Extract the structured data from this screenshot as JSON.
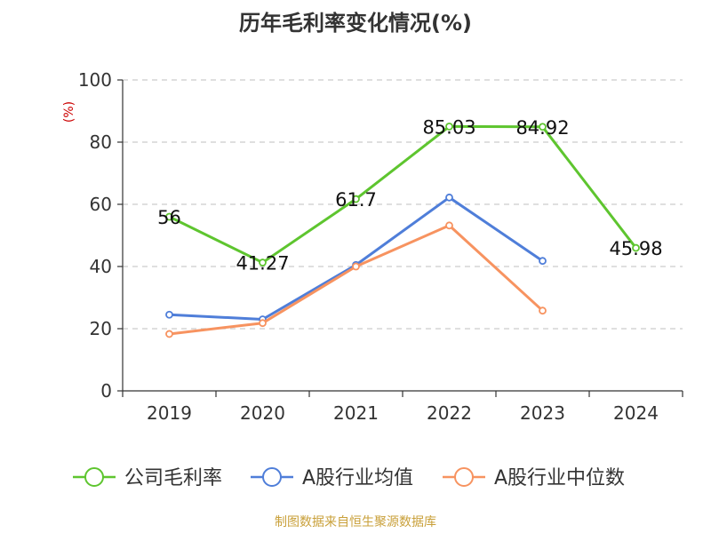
{
  "colors": {
    "company": "#5ec52f",
    "industry_avg": "#4f7ed9",
    "industry_median": "#f79360",
    "grid": "#cccccc",
    "axis": "#333333",
    "unit": "#cc0000",
    "source": "#c9a03a"
  },
  "chart_data": {
    "type": "line",
    "title": "历年毛利率变化情况(%)",
    "ylabel": "(%)",
    "ylim": [
      0,
      100
    ],
    "yticks": [
      0,
      20,
      40,
      60,
      80,
      100
    ],
    "categories": [
      "2019",
      "2020",
      "2021",
      "2022",
      "2023",
      "2024"
    ],
    "grid": true,
    "legend_position": "bottom",
    "series": [
      {
        "name": "公司毛利率",
        "values": [
          56,
          41.27,
          61.7,
          85.03,
          84.92,
          45.98
        ],
        "labels": [
          "56",
          "41.27",
          "61.7",
          "85.03",
          "84.92",
          "45.98"
        ]
      },
      {
        "name": "A股行业均值",
        "values": [
          24.5,
          23,
          40.5,
          62.2,
          41.8,
          null
        ]
      },
      {
        "name": "A股行业中位数",
        "values": [
          18.3,
          21.8,
          40,
          53.2,
          25.8,
          null
        ]
      }
    ]
  },
  "source_text": "制图数据来自恒生聚源数据库"
}
